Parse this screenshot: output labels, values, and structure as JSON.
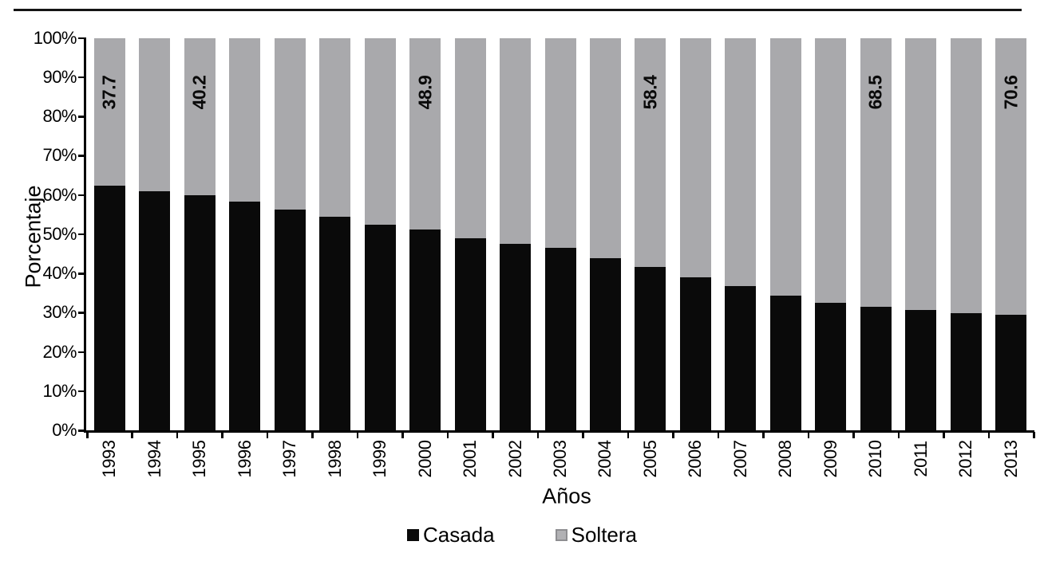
{
  "page": {
    "background": "#ffffff",
    "top_rule_color": "#141414"
  },
  "chart_data": {
    "type": "bar",
    "variant": "100-percent-stacked-column",
    "title": "",
    "xlabel": "Años",
    "ylabel": "Porcentaje",
    "categories": [
      "1993",
      "1994",
      "1995",
      "1996",
      "1997",
      "1998",
      "1999",
      "2000",
      "2001",
      "2002",
      "2003",
      "2004",
      "2005",
      "2006",
      "2007",
      "2008",
      "2009",
      "2010",
      "2011",
      "2012",
      "2013"
    ],
    "series": [
      {
        "name": "Casada",
        "color": "#0a0a0a",
        "values": [
          62.3,
          61.0,
          59.8,
          58.2,
          56.3,
          54.4,
          52.3,
          51.1,
          48.9,
          47.5,
          46.4,
          43.8,
          41.6,
          38.9,
          36.8,
          34.3,
          32.4,
          31.5,
          30.6,
          29.9,
          29.4
        ]
      },
      {
        "name": "Soltera",
        "color": "#a9a9ac",
        "values": [
          37.7,
          39.0,
          40.2,
          41.8,
          43.7,
          45.6,
          47.7,
          48.9,
          51.1,
          52.5,
          53.6,
          56.2,
          58.4,
          61.1,
          63.2,
          65.7,
          67.6,
          68.5,
          69.4,
          70.1,
          70.6
        ]
      }
    ],
    "data_labels": {
      "on_series": "Soltera",
      "color": "#0a0a0a",
      "points": {
        "1993": "37.7",
        "1995": "40.2",
        "2000": "48.9",
        "2005": "58.4",
        "2010": "68.5",
        "2013": "70.6"
      }
    },
    "y_ticks": [
      "0%",
      "10%",
      "20%",
      "30%",
      "40%",
      "50%",
      "60%",
      "70%",
      "80%",
      "90%",
      "100%"
    ],
    "ylim": [
      0,
      100
    ],
    "grid": false,
    "legend_position": "bottom-center",
    "legend": {
      "casada_swatch_color": "#0a0a0a",
      "soltera_swatch_color": "#b1b1b4",
      "soltera_swatch_border": "#8e8e91"
    }
  }
}
